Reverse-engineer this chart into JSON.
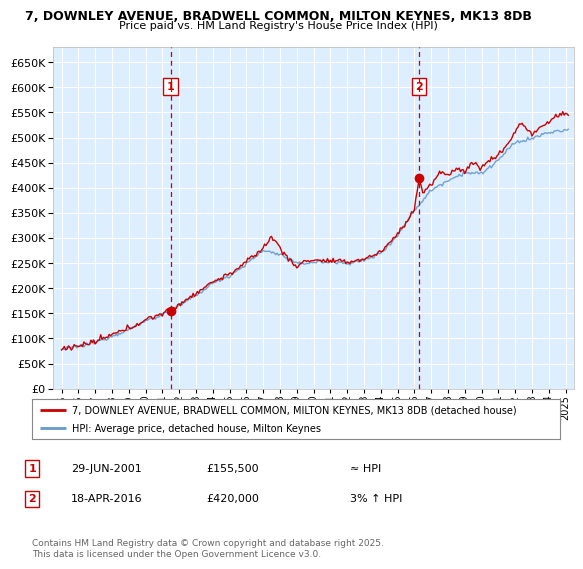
{
  "title_line1": "7, DOWNLEY AVENUE, BRADWELL COMMON, MILTON KEYNES, MK13 8DB",
  "title_line2": "Price paid vs. HM Land Registry's House Price Index (HPI)",
  "background_color": "#ffffff",
  "plot_bg_color": "#ddeeff",
  "grid_color": "#ffffff",
  "purchase1_date": 2001.49,
  "purchase1_price": 155500,
  "purchase2_date": 2016.29,
  "purchase2_price": 420000,
  "legend_line1": "7, DOWNLEY AVENUE, BRADWELL COMMON, MILTON KEYNES, MK13 8DB (detached house)",
  "legend_line2": "HPI: Average price, detached house, Milton Keynes",
  "annotation1_label": "1",
  "annotation1_date": "29-JUN-2001",
  "annotation1_price": "£155,500",
  "annotation1_hpi": "≈ HPI",
  "annotation2_label": "2",
  "annotation2_date": "18-APR-2016",
  "annotation2_price": "£420,000",
  "annotation2_hpi": "3% ↑ HPI",
  "footer": "Contains HM Land Registry data © Crown copyright and database right 2025.\nThis data is licensed under the Open Government Licence v3.0.",
  "red_line_color": "#cc0000",
  "blue_line_color": "#6699cc",
  "dashed_line_color": "#cc0000",
  "ylim_min": 0,
  "ylim_max": 680000,
  "xmin": 1994.5,
  "xmax": 2025.5
}
